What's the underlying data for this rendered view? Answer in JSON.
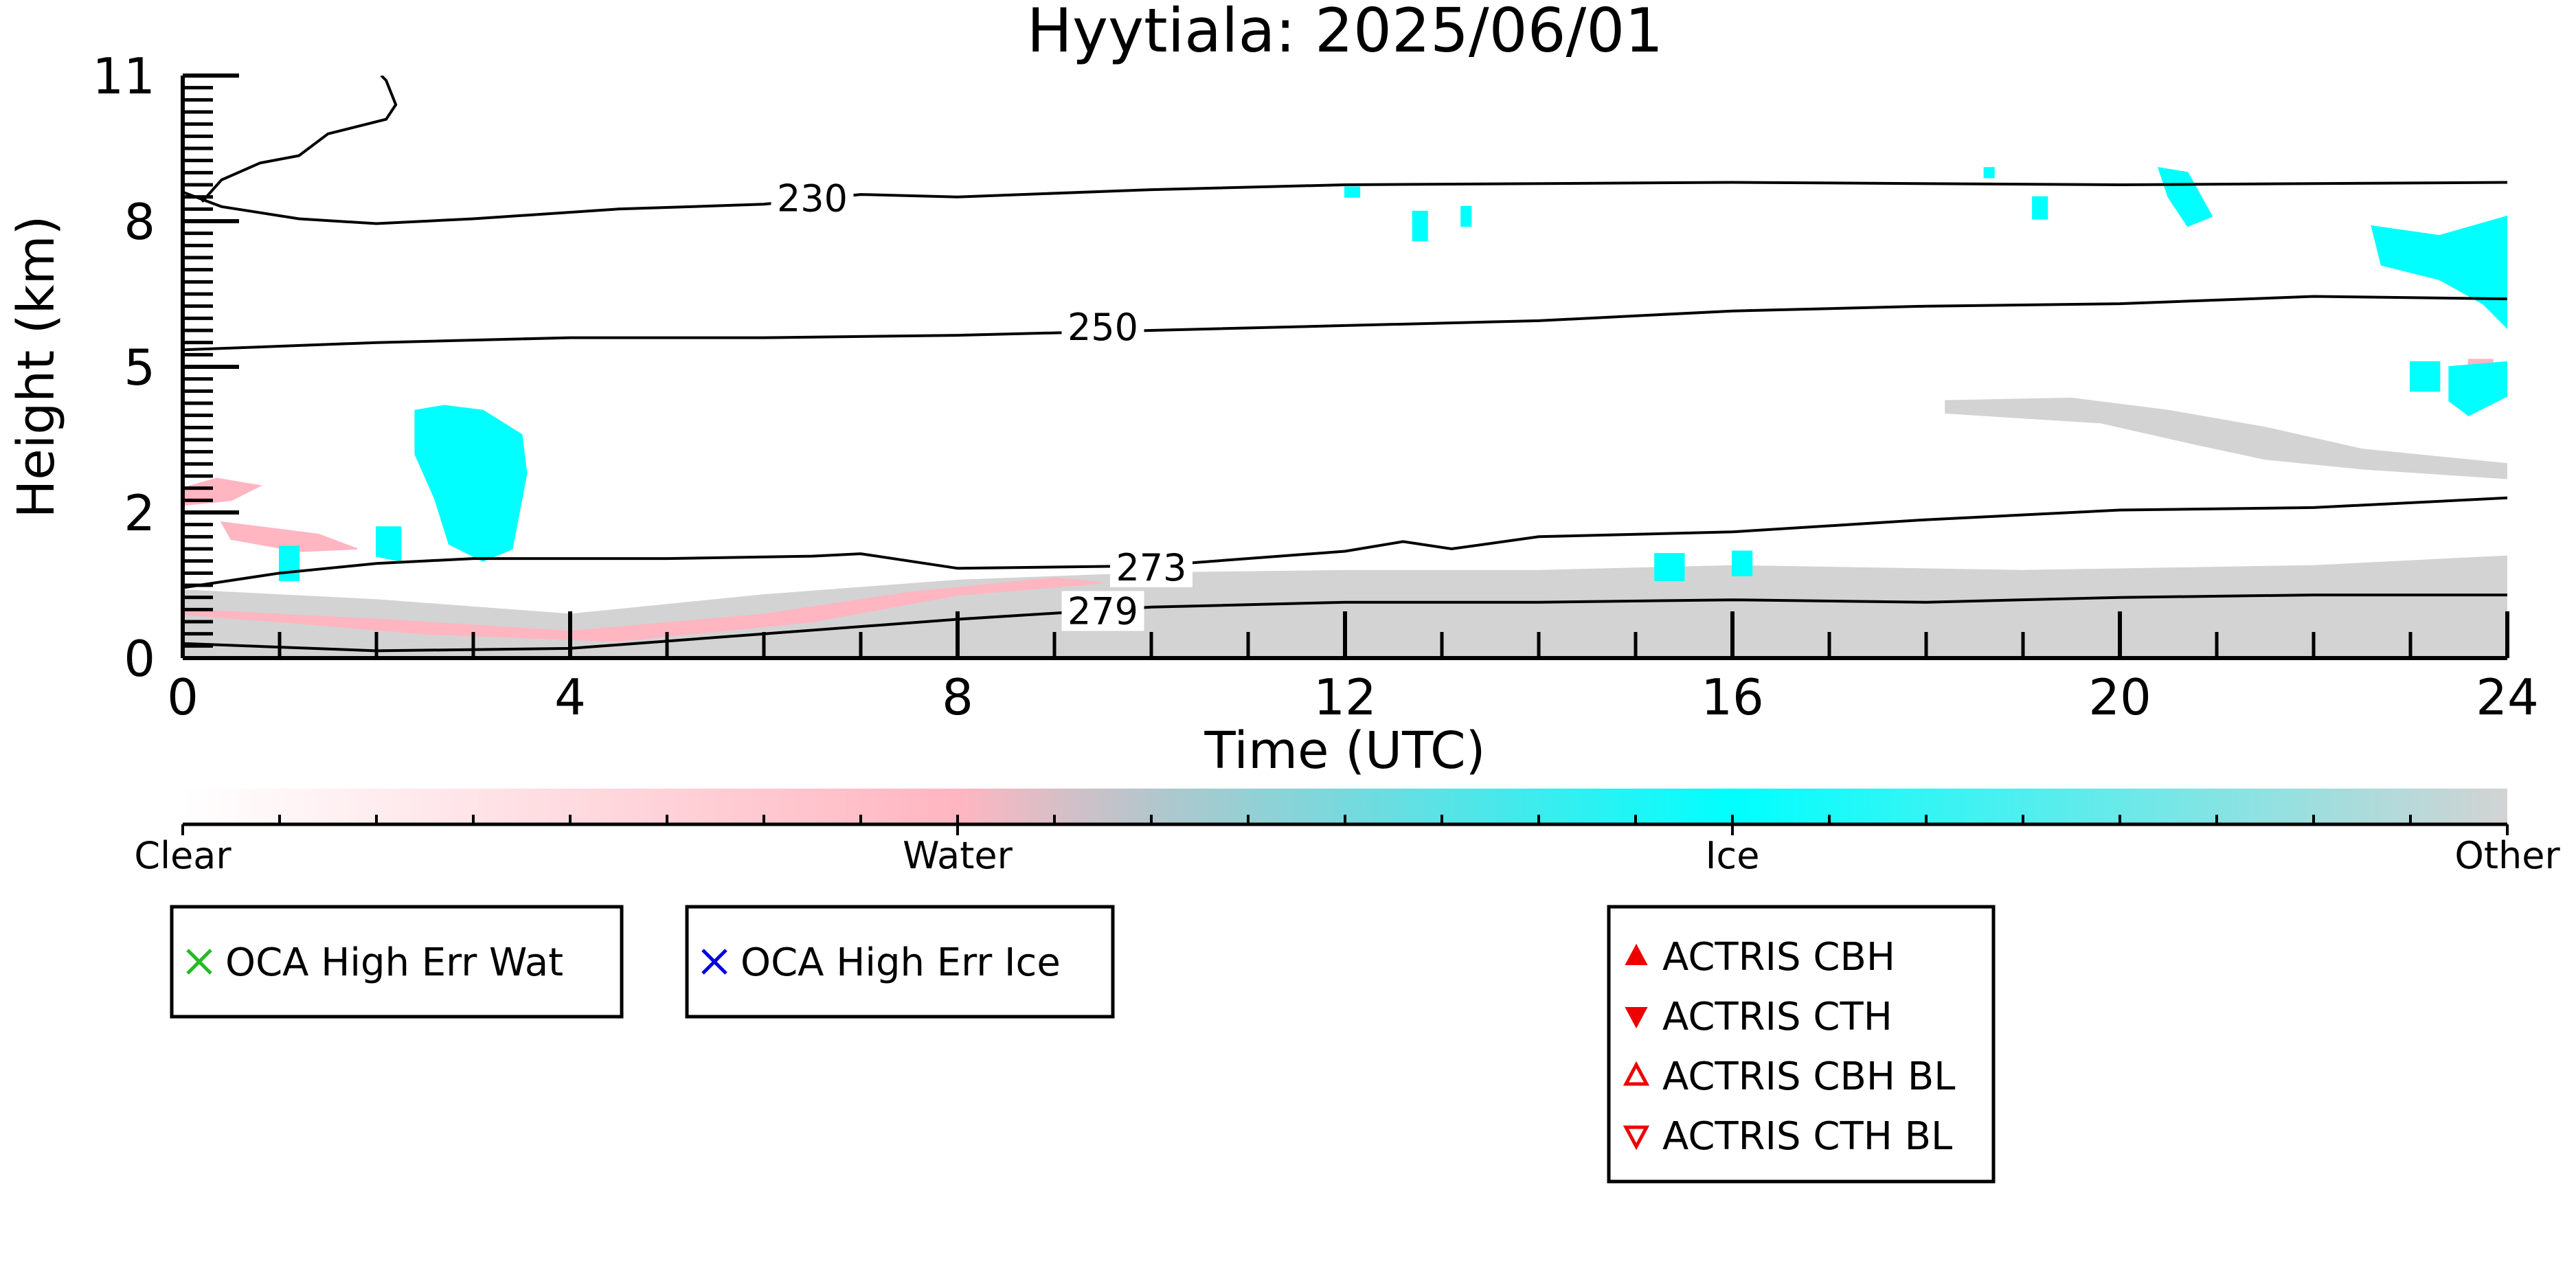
{
  "chart_data": {
    "type": "heatmap",
    "title": "Hyytiala: 2025/06/01",
    "xlabel": "Time (UTC)",
    "ylabel": "Height (km)",
    "xlim": [
      0,
      24
    ],
    "ylim": [
      0,
      12
    ],
    "x_ticks": [
      0,
      4,
      8,
      12,
      16,
      20,
      24
    ],
    "y_ticks": [
      {
        "value": 0,
        "label": "0"
      },
      {
        "value": 3,
        "label": "2"
      },
      {
        "value": 6,
        "label": "5"
      },
      {
        "value": 9,
        "label": "8"
      },
      {
        "value": 12,
        "label": "11"
      }
    ],
    "colorbar": {
      "labels": [
        "Clear",
        "Water",
        "Ice",
        "Other"
      ],
      "colors": [
        "#ffffff",
        "#ffb6c1",
        "#00ffff",
        "#d3d3d3"
      ]
    },
    "classes": [
      {
        "name": "Other",
        "color": "#d3d3d3",
        "regions": [
          [
            [
              0,
              0
            ],
            [
              24,
              0
            ],
            [
              24,
              2.1
            ],
            [
              22,
              1.9
            ],
            [
              19,
              1.8
            ],
            [
              16,
              1.9
            ],
            [
              14,
              1.8
            ],
            [
              12,
              1.8
            ],
            [
              10,
              1.75
            ],
            [
              8,
              1.6
            ],
            [
              6,
              1.3
            ],
            [
              4,
              0.9
            ],
            [
              2,
              1.2
            ],
            [
              0,
              1.4
            ]
          ],
          [
            [
              18.2,
              5.3
            ],
            [
              19.5,
              5.35
            ],
            [
              20.5,
              5.1
            ],
            [
              21.5,
              4.75
            ],
            [
              22.5,
              4.3
            ],
            [
              24,
              4.0
            ],
            [
              24,
              3.7
            ],
            [
              22.5,
              3.9
            ],
            [
              21.5,
              4.1
            ],
            [
              20.8,
              4.4
            ],
            [
              19.8,
              4.85
            ],
            [
              18.2,
              5.05
            ]
          ]
        ]
      },
      {
        "name": "Water",
        "color": "#ffb6c1",
        "regions": [
          [
            [
              0,
              1.0
            ],
            [
              2,
              0.8
            ],
            [
              4,
              0.55
            ],
            [
              6,
              0.9
            ],
            [
              7.5,
              1.35
            ],
            [
              9,
              1.65
            ],
            [
              9.5,
              1.55
            ],
            [
              8,
              1.3
            ],
            [
              6.5,
              0.75
            ],
            [
              4.5,
              0.35
            ],
            [
              2.5,
              0.5
            ],
            [
              1,
              0.75
            ],
            [
              0,
              0.9
            ]
          ],
          [
            [
              0,
              3.5
            ],
            [
              0.35,
              3.7
            ],
            [
              0.8,
              3.55
            ],
            [
              0.5,
              3.25
            ],
            [
              0,
              3.15
            ]
          ],
          [
            [
              0.4,
              2.8
            ],
            [
              1.4,
              2.55
            ],
            [
              1.8,
              2.25
            ],
            [
              1.2,
              2.2
            ],
            [
              0.5,
              2.45
            ]
          ],
          [
            [
              23.6,
              6.15
            ],
            [
              23.85,
              6.15
            ],
            [
              23.85,
              5.6
            ],
            [
              23.6,
              5.6
            ]
          ]
        ]
      },
      {
        "name": "Ice",
        "color": "#00ffff",
        "regions": [
          [
            [
              2.4,
              5.1
            ],
            [
              2.7,
              5.2
            ],
            [
              3.1,
              5.1
            ],
            [
              3.5,
              4.6
            ],
            [
              3.55,
              3.8
            ],
            [
              3.4,
              2.25
            ],
            [
              3.1,
              2.0
            ],
            [
              2.75,
              2.35
            ],
            [
              2.6,
              3.3
            ],
            [
              2.4,
              4.2
            ]
          ],
          [
            [
              2.0,
              2.7
            ],
            [
              2.25,
              2.7
            ],
            [
              2.25,
              2.0
            ],
            [
              2.0,
              2.1
            ]
          ],
          [
            [
              1.0,
              2.3
            ],
            [
              1.2,
              2.3
            ],
            [
              1.2,
              1.6
            ],
            [
              1.0,
              1.6
            ]
          ],
          [
            [
              20.4,
              10.1
            ],
            [
              20.7,
              10.0
            ],
            [
              20.95,
              9.1
            ],
            [
              20.7,
              8.9
            ],
            [
              20.5,
              9.5
            ]
          ],
          [
            [
              22.6,
              8.9
            ],
            [
              23.3,
              8.7
            ],
            [
              24,
              9.1
            ],
            [
              24,
              6.8
            ],
            [
              23.75,
              7.3
            ],
            [
              23.3,
              7.8
            ],
            [
              22.7,
              8.1
            ]
          ],
          [
            [
              23.0,
              6.1
            ],
            [
              23.3,
              6.1
            ],
            [
              23.3,
              5.5
            ],
            [
              23.0,
              5.5
            ]
          ],
          [
            [
              23.4,
              6.0
            ],
            [
              24,
              6.1
            ],
            [
              24,
              5.4
            ],
            [
              23.6,
              5.0
            ],
            [
              23.4,
              5.3
            ]
          ],
          [
            [
              19.1,
              9.5
            ],
            [
              19.25,
              9.5
            ],
            [
              19.25,
              9.05
            ],
            [
              19.1,
              9.05
            ]
          ],
          [
            [
              12.7,
              9.2
            ],
            [
              12.85,
              9.2
            ],
            [
              12.85,
              8.6
            ],
            [
              12.7,
              8.6
            ]
          ],
          [
            [
              13.2,
              9.3
            ],
            [
              13.3,
              9.3
            ],
            [
              13.3,
              8.9
            ],
            [
              13.2,
              8.9
            ]
          ],
          [
            [
              12.0,
              9.7
            ],
            [
              12.15,
              9.7
            ],
            [
              12.15,
              9.5
            ],
            [
              12.0,
              9.5
            ]
          ],
          [
            [
              15.2,
              2.15
            ],
            [
              15.5,
              2.15
            ],
            [
              15.5,
              1.6
            ],
            [
              15.2,
              1.6
            ]
          ],
          [
            [
              16.0,
              2.2
            ],
            [
              16.2,
              2.2
            ],
            [
              16.2,
              1.7
            ],
            [
              16.0,
              1.7
            ]
          ],
          [
            [
              18.6,
              10.1
            ],
            [
              18.7,
              10.1
            ],
            [
              18.7,
              9.9
            ],
            [
              18.6,
              9.9
            ]
          ]
        ]
      }
    ],
    "contours": [
      {
        "label": "230",
        "label_at": [
          6.5,
          9.4
        ],
        "points": [
          [
            0,
            9.6
          ],
          [
            0.4,
            9.3
          ],
          [
            1.2,
            9.05
          ],
          [
            2,
            8.95
          ],
          [
            3,
            9.05
          ],
          [
            4.5,
            9.25
          ],
          [
            6,
            9.35
          ],
          [
            7,
            9.55
          ],
          [
            8,
            9.5
          ],
          [
            10,
            9.65
          ],
          [
            12,
            9.75
          ],
          [
            16,
            9.8
          ],
          [
            20,
            9.75
          ],
          [
            24,
            9.8
          ]
        ]
      },
      {
        "label": "250",
        "label_at": [
          9.5,
          6.75
        ],
        "points": [
          [
            0,
            6.35
          ],
          [
            2,
            6.5
          ],
          [
            4,
            6.6
          ],
          [
            6,
            6.6
          ],
          [
            8,
            6.65
          ],
          [
            10,
            6.75
          ],
          [
            12,
            6.85
          ],
          [
            14,
            6.95
          ],
          [
            16,
            7.15
          ],
          [
            18,
            7.25
          ],
          [
            20,
            7.3
          ],
          [
            22,
            7.45
          ],
          [
            24,
            7.4
          ]
        ]
      },
      {
        "label": "273",
        "label_at": [
          10,
          1.8
        ],
        "points": [
          [
            0,
            1.45
          ],
          [
            1,
            1.75
          ],
          [
            2,
            1.95
          ],
          [
            3,
            2.05
          ],
          [
            5,
            2.05
          ],
          [
            6.5,
            2.1
          ],
          [
            7,
            2.15
          ],
          [
            8,
            1.85
          ],
          [
            10,
            1.9
          ],
          [
            12,
            2.2
          ],
          [
            12.6,
            2.4
          ],
          [
            13.1,
            2.25
          ],
          [
            14,
            2.5
          ],
          [
            16,
            2.6
          ],
          [
            18,
            2.85
          ],
          [
            20,
            3.05
          ],
          [
            22,
            3.1
          ],
          [
            24,
            3.3
          ]
        ]
      },
      {
        "label": "279",
        "label_at": [
          9.5,
          0.9
        ],
        "points": [
          [
            0,
            0.3
          ],
          [
            2,
            0.15
          ],
          [
            4,
            0.2
          ],
          [
            6,
            0.5
          ],
          [
            8,
            0.8
          ],
          [
            10,
            1.05
          ],
          [
            12,
            1.15
          ],
          [
            14,
            1.15
          ],
          [
            16,
            1.2
          ],
          [
            18,
            1.15
          ],
          [
            20,
            1.25
          ],
          [
            22,
            1.3
          ],
          [
            24,
            1.3
          ]
        ]
      },
      {
        "label": "",
        "points": [
          [
            0.2,
            9.4
          ],
          [
            0.4,
            9.85
          ],
          [
            0.8,
            10.2
          ],
          [
            1.2,
            10.35
          ],
          [
            1.5,
            10.8
          ],
          [
            2.1,
            11.1
          ],
          [
            2.2,
            11.4
          ],
          [
            2.1,
            11.9
          ],
          [
            2.05,
            12
          ]
        ]
      }
    ],
    "legends": [
      {
        "items": [
          {
            "marker": "x",
            "color": "#22bb22",
            "label": "OCA High Err Wat"
          }
        ]
      },
      {
        "items": [
          {
            "marker": "x",
            "color": "#0000dd",
            "label": "OCA High Err Ice"
          }
        ]
      },
      {
        "items": [
          {
            "marker": "triangle-up-filled",
            "color": "#ee0000",
            "label": "ACTRIS CBH"
          },
          {
            "marker": "triangle-down-filled",
            "color": "#ee0000",
            "label": "ACTRIS CTH"
          },
          {
            "marker": "triangle-up-open",
            "color": "#ee0000",
            "label": "ACTRIS CBH BL"
          },
          {
            "marker": "triangle-down-open",
            "color": "#ee0000",
            "label": "ACTRIS CTH BL"
          }
        ]
      }
    ]
  }
}
